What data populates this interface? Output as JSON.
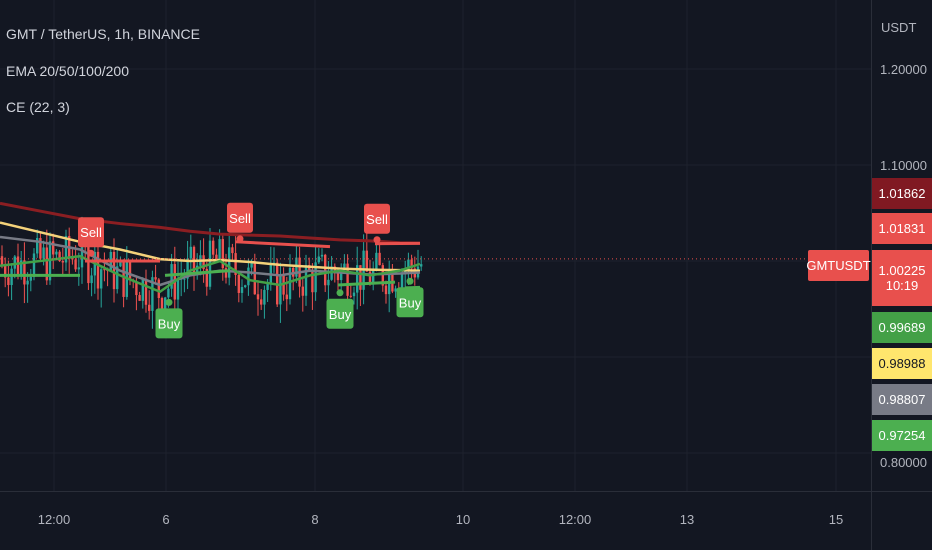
{
  "legend": {
    "title": "GMT / TetherUS, 1h, BINANCE",
    "indicator1": "EMA 20/50/100/200",
    "indicator2": "CE (22, 3)"
  },
  "price_axis": {
    "unit": "USDT",
    "ticks": [
      "1.20000",
      "1.10000",
      "0.80000"
    ]
  },
  "time_axis": {
    "ticks": [
      "12:00",
      "6",
      "8",
      "10",
      "12:00",
      "13",
      "15"
    ]
  },
  "symbol_label": "GMTUSDT",
  "badges": [
    {
      "text": "1.01862",
      "bg": "#801922",
      "fg": "#ffffff"
    },
    {
      "text": "1.01831",
      "bg": "#e8504d",
      "fg": "#ffffff"
    },
    {
      "text": "1.00225",
      "sub": "10:19",
      "bg": "#e8504d",
      "fg": "#ffffff"
    },
    {
      "text": "0.99689",
      "bg": "#43a047",
      "fg": "#ffffff"
    },
    {
      "text": "0.98988",
      "bg": "#ffe66d",
      "fg": "#131722"
    },
    {
      "text": "0.98807",
      "bg": "#787b86",
      "fg": "#ffffff"
    },
    {
      "text": "0.97254",
      "bg": "#4caf50",
      "fg": "#ffffff"
    }
  ],
  "colors": {
    "background": "#131722",
    "up": "#26a69a",
    "down": "#ef5350",
    "ema20": "#43a047",
    "ema50": "#787b86",
    "ema100": "#f4d27a",
    "ema200": "#8b1e22",
    "ce_long": "#4caf50",
    "ce_short": "#e8504d"
  },
  "chart_data": {
    "type": "candlestick",
    "symbol": "GMT / TetherUS",
    "interval": "1h",
    "exchange": "BINANCE",
    "ylim": [
      0.78,
      1.22
    ],
    "last_price": 1.00225,
    "ema": [
      {
        "name": "EMA 200",
        "color": "#8b1e22",
        "x": [
          0,
          40,
          80,
          120,
          160,
          190,
          220,
          250,
          280,
          310,
          340,
          370,
          400,
          420
        ],
        "y": [
          1.06,
          1.052,
          1.044,
          1.039,
          1.035,
          1.031,
          1.028,
          1.027,
          1.026,
          1.024,
          1.022,
          1.021,
          1.019,
          1.0186
        ]
      },
      {
        "name": "EMA 100",
        "color": "#f4d27a",
        "x": [
          0,
          40,
          80,
          120,
          160,
          190,
          220,
          250,
          280,
          310,
          340,
          370,
          400,
          420
        ],
        "y": [
          1.04,
          1.03,
          1.02,
          1.012,
          1.002,
          1.0,
          1.001,
          0.999,
          0.996,
          0.994,
          0.992,
          0.991,
          0.9905,
          0.98988
        ]
      },
      {
        "name": "EMA 50",
        "color": "#787b86",
        "x": [
          0,
          40,
          80,
          120,
          160,
          190,
          220,
          250,
          280,
          310,
          340,
          370,
          400,
          420
        ],
        "y": [
          1.025,
          1.02,
          1.012,
          0.99,
          0.975,
          0.985,
          0.99,
          0.988,
          0.985,
          0.99,
          0.988,
          0.986,
          0.987,
          0.98807
        ]
      },
      {
        "name": "EMA 20",
        "color": "#43a047",
        "x": [
          0,
          40,
          80,
          120,
          160,
          190,
          220,
          250,
          280,
          310,
          340,
          370,
          400,
          420
        ],
        "y": [
          0.995,
          1.0,
          1.005,
          0.985,
          0.968,
          0.99,
          1.0,
          0.98,
          0.975,
          0.985,
          0.99,
          0.985,
          0.99,
          0.99689
        ]
      }
    ],
    "chandelier_exit": [
      {
        "name": "long stop",
        "color": "#4caf50",
        "segments": [
          {
            "x": [
              0,
              80
            ],
            "y": [
              0.985,
              0.985
            ]
          },
          {
            "x": [
              165,
              230
            ],
            "y": [
              0.985,
              0.99
            ]
          },
          {
            "x": [
              338,
              395
            ],
            "y": [
              0.975,
              0.978
            ]
          },
          {
            "x": [
              405,
              420
            ],
            "y": [
              0.972,
              0.9725
            ]
          }
        ]
      },
      {
        "name": "short stop",
        "color": "#e8504d",
        "segments": [
          {
            "x": [
              85,
              160
            ],
            "y": [
              1.0,
              1.0
            ]
          },
          {
            "x": [
              236,
              330
            ],
            "y": [
              1.02,
              1.015
            ]
          },
          {
            "x": [
              375,
              420
            ],
            "y": [
              1.018,
              1.0183
            ]
          }
        ]
      }
    ],
    "signals": [
      {
        "type": "Sell",
        "x": 91,
        "y": 1.03
      },
      {
        "type": "Buy",
        "x": 169,
        "y": 0.935
      },
      {
        "type": "Sell",
        "x": 240,
        "y": 1.045
      },
      {
        "type": "Buy",
        "x": 340,
        "y": 0.945
      },
      {
        "type": "Sell",
        "x": 377,
        "y": 1.044
      },
      {
        "type": "Buy",
        "x": 410,
        "y": 0.957
      }
    ],
    "candles": []
  }
}
